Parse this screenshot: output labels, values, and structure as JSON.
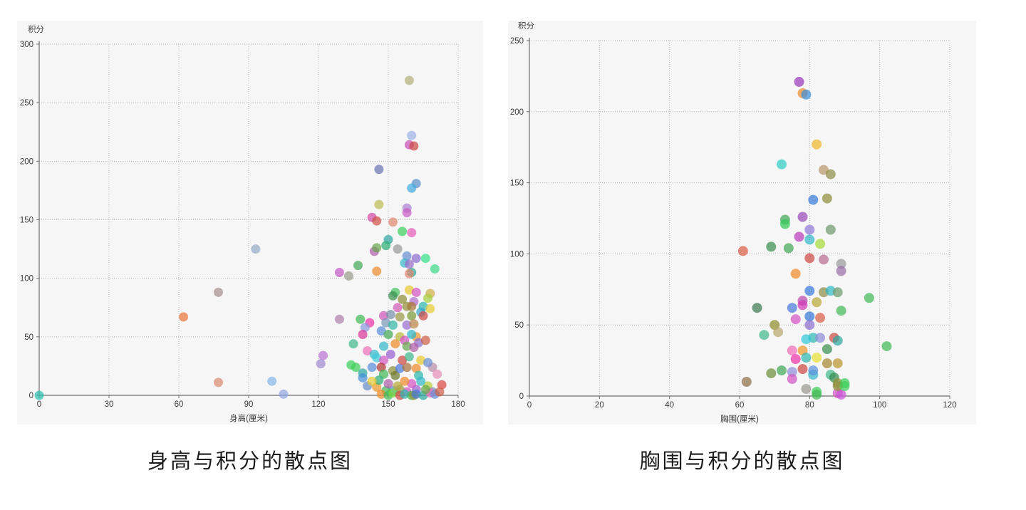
{
  "page": {
    "background": "#ffffff",
    "panel_background": "#f6f6f7"
  },
  "chart_data": [
    {
      "type": "scatter",
      "title": "身高与积分的散点图",
      "xlabel": "身高(厘米)",
      "ylabel": "积分",
      "xlim": [
        0,
        180
      ],
      "ylim": [
        0,
        300
      ],
      "x_ticks": [
        0,
        30,
        60,
        90,
        120,
        150,
        180
      ],
      "y_ticks": [
        0,
        50,
        100,
        150,
        200,
        250,
        300
      ],
      "grid": "dotted",
      "legend": "none",
      "point_radius": 6.5,
      "point_opacity": 0.72,
      "points": [
        {
          "x": 0,
          "y": 0,
          "c": "#2bbfae"
        },
        {
          "x": 62,
          "y": 67,
          "c": "#e8743b"
        },
        {
          "x": 77,
          "y": 88,
          "c": "#a8928e"
        },
        {
          "x": 77,
          "y": 11,
          "c": "#d98a72"
        },
        {
          "x": 93,
          "y": 125,
          "c": "#96aac8"
        },
        {
          "x": 100,
          "y": 12,
          "c": "#88b8e8"
        },
        {
          "x": 105,
          "y": 1,
          "c": "#92a6e0"
        },
        {
          "x": 122,
          "y": 34,
          "c": "#bd72d6"
        },
        {
          "x": 121,
          "y": 27,
          "c": "#a08bd0"
        },
        {
          "x": 159,
          "y": 269,
          "c": "#b5b37c"
        },
        {
          "x": 160,
          "y": 222,
          "c": "#9cb1e3"
        },
        {
          "x": 159,
          "y": 214,
          "c": "#c94fb8"
        },
        {
          "x": 161,
          "y": 213,
          "c": "#cc4a45"
        },
        {
          "x": 146,
          "y": 193,
          "c": "#6a74b0"
        },
        {
          "x": 162,
          "y": 181,
          "c": "#5b8fc9"
        },
        {
          "x": 160,
          "y": 177,
          "c": "#43aadd"
        },
        {
          "x": 146,
          "y": 163,
          "c": "#b9bd55"
        },
        {
          "x": 143,
          "y": 152,
          "c": "#d14ba8"
        },
        {
          "x": 145,
          "y": 149,
          "c": "#cf5349"
        },
        {
          "x": 152,
          "y": 148,
          "c": "#e08a70"
        },
        {
          "x": 158,
          "y": 160,
          "c": "#a97fd1"
        },
        {
          "x": 158,
          "y": 156,
          "c": "#c95ec3"
        },
        {
          "x": 156,
          "y": 140,
          "c": "#3fcf61"
        },
        {
          "x": 160,
          "y": 139,
          "c": "#e560b8"
        },
        {
          "x": 150,
          "y": 133,
          "c": "#2fa8a0"
        },
        {
          "x": 129,
          "y": 105,
          "c": "#c45cc8"
        },
        {
          "x": 133,
          "y": 102,
          "c": "#9a9d8c"
        },
        {
          "x": 137,
          "y": 111,
          "c": "#43a857"
        },
        {
          "x": 145,
          "y": 106,
          "c": "#ef8c2e"
        },
        {
          "x": 144,
          "y": 123,
          "c": "#b05fa8"
        },
        {
          "x": 145,
          "y": 126,
          "c": "#6aa84f"
        },
        {
          "x": 154,
          "y": 125,
          "c": "#9a9a9a"
        },
        {
          "x": 149,
          "y": 128,
          "c": "#2fae77"
        },
        {
          "x": 158,
          "y": 119,
          "c": "#6c8fd4"
        },
        {
          "x": 162,
          "y": 117,
          "c": "#8f6fd0"
        },
        {
          "x": 166,
          "y": 117,
          "c": "#35e08a"
        },
        {
          "x": 157,
          "y": 113,
          "c": "#35b8c9"
        },
        {
          "x": 159,
          "y": 112,
          "c": "#9a6fc9"
        },
        {
          "x": 160,
          "y": 105,
          "c": "#2fa89a"
        },
        {
          "x": 159,
          "y": 104,
          "c": "#e0876f"
        },
        {
          "x": 170,
          "y": 108,
          "c": "#3fd98a"
        },
        {
          "x": 153,
          "y": 88,
          "c": "#4cc462"
        },
        {
          "x": 159,
          "y": 90,
          "c": "#e8c832"
        },
        {
          "x": 162,
          "y": 88,
          "c": "#d454c4"
        },
        {
          "x": 152,
          "y": 85,
          "c": "#3a8f4f"
        },
        {
          "x": 168,
          "y": 87,
          "c": "#cfae4a"
        },
        {
          "x": 167,
          "y": 83,
          "c": "#a8cf3f"
        },
        {
          "x": 161,
          "y": 80,
          "c": "#b06fd0"
        },
        {
          "x": 156,
          "y": 82,
          "c": "#8f8f3a"
        },
        {
          "x": 154,
          "y": 75,
          "c": "#d05cb8"
        },
        {
          "x": 158,
          "y": 76,
          "c": "#8f8f3a"
        },
        {
          "x": 160,
          "y": 76,
          "c": "#a8783a"
        },
        {
          "x": 165,
          "y": 76,
          "c": "#2fb8b0"
        },
        {
          "x": 168,
          "y": 74,
          "c": "#e8cf3a"
        },
        {
          "x": 148,
          "y": 68,
          "c": "#cf54b8"
        },
        {
          "x": 151,
          "y": 69,
          "c": "#7a8fa8"
        },
        {
          "x": 155,
          "y": 67,
          "c": "#9a9a4a"
        },
        {
          "x": 160,
          "y": 68,
          "c": "#7a9a3a"
        },
        {
          "x": 164,
          "y": 71,
          "c": "#35a8c9"
        },
        {
          "x": 165,
          "y": 68,
          "c": "#cf4a45"
        },
        {
          "x": 129,
          "y": 65,
          "c": "#b07fa8"
        },
        {
          "x": 138,
          "y": 65,
          "c": "#43b857"
        },
        {
          "x": 142,
          "y": 62,
          "c": "#ef35a8"
        },
        {
          "x": 149,
          "y": 62,
          "c": "#7a9ab8"
        },
        {
          "x": 152,
          "y": 60,
          "c": "#35b8a8"
        },
        {
          "x": 158,
          "y": 60,
          "c": "#9a6fd0"
        },
        {
          "x": 161,
          "y": 61,
          "c": "#b8864a"
        },
        {
          "x": 140,
          "y": 58,
          "c": "#8f9ad9"
        },
        {
          "x": 139,
          "y": 52,
          "c": "#d93a9a"
        },
        {
          "x": 162,
          "y": 50,
          "c": "#ef9a2e"
        },
        {
          "x": 135,
          "y": 44,
          "c": "#43b88f"
        },
        {
          "x": 147,
          "y": 55,
          "c": "#5c8fd9"
        },
        {
          "x": 150,
          "y": 52,
          "c": "#43a857"
        },
        {
          "x": 155,
          "y": 50,
          "c": "#b8b83a"
        },
        {
          "x": 157,
          "y": 47,
          "c": "#d454c4"
        },
        {
          "x": 160,
          "y": 52,
          "c": "#2fb8c9"
        },
        {
          "x": 163,
          "y": 45,
          "c": "#8f6fd0"
        },
        {
          "x": 166,
          "y": 47,
          "c": "#cf5f45"
        },
        {
          "x": 153,
          "y": 44,
          "c": "#ef8c2e"
        },
        {
          "x": 148,
          "y": 42,
          "c": "#35b8c9"
        },
        {
          "x": 158,
          "y": 42,
          "c": "#6aa84f"
        },
        {
          "x": 161,
          "y": 41,
          "c": "#b05fa8"
        },
        {
          "x": 141,
          "y": 38,
          "c": "#ef6fb8"
        },
        {
          "x": 144,
          "y": 35,
          "c": "#35b8c9"
        },
        {
          "x": 145,
          "y": 32,
          "c": "#43c9d9"
        },
        {
          "x": 148,
          "y": 30,
          "c": "#d05cc4"
        },
        {
          "x": 134,
          "y": 26,
          "c": "#3fcf5c"
        },
        {
          "x": 139,
          "y": 19,
          "c": "#2fa8a0"
        },
        {
          "x": 143,
          "y": 24,
          "c": "#5c8fd9"
        },
        {
          "x": 147,
          "y": 24,
          "c": "#b03a35"
        },
        {
          "x": 148,
          "y": 18,
          "c": "#43b857"
        },
        {
          "x": 152,
          "y": 21,
          "c": "#8f8f3a"
        },
        {
          "x": 153,
          "y": 17,
          "c": "#6f7a2e"
        },
        {
          "x": 155,
          "y": 23,
          "c": "#4a7ad9"
        },
        {
          "x": 158,
          "y": 24,
          "c": "#a8733a"
        },
        {
          "x": 162,
          "y": 23,
          "c": "#ef8c2e"
        },
        {
          "x": 163,
          "y": 17,
          "c": "#2fb8b0"
        },
        {
          "x": 169,
          "y": 24,
          "c": "#b88fa8"
        },
        {
          "x": 171,
          "y": 18,
          "c": "#e58fb8"
        },
        {
          "x": 136,
          "y": 24,
          "c": "#3fcf5c"
        },
        {
          "x": 151,
          "y": 35,
          "c": "#9a5fd0"
        },
        {
          "x": 156,
          "y": 30,
          "c": "#cf4a45"
        },
        {
          "x": 159,
          "y": 33,
          "c": "#43b88f"
        },
        {
          "x": 164,
          "y": 30,
          "c": "#e8c832"
        },
        {
          "x": 167,
          "y": 28,
          "c": "#6c8fd4"
        },
        {
          "x": 173,
          "y": 9,
          "c": "#d94a45"
        },
        {
          "x": 167,
          "y": 8,
          "c": "#b8cf3f"
        },
        {
          "x": 169,
          "y": 3,
          "c": "#7a8fb8"
        },
        {
          "x": 162,
          "y": 5,
          "c": "#9a5fd0"
        },
        {
          "x": 158,
          "y": 3,
          "c": "#d054c4"
        },
        {
          "x": 155,
          "y": 5,
          "c": "#9a9a4a"
        },
        {
          "x": 152,
          "y": 4,
          "c": "#5c8fd9"
        },
        {
          "x": 149,
          "y": 4,
          "c": "#43b857"
        },
        {
          "x": 145,
          "y": 7,
          "c": "#ef9a2e"
        },
        {
          "x": 141,
          "y": 8,
          "c": "#6c8fc9"
        },
        {
          "x": 139,
          "y": 15,
          "c": "#4a8fd9"
        },
        {
          "x": 147,
          "y": 1,
          "c": "#ef8c2e"
        },
        {
          "x": 150,
          "y": 0,
          "c": "#43b857"
        },
        {
          "x": 152,
          "y": 2,
          "c": "#7ad93f"
        },
        {
          "x": 155,
          "y": 0,
          "c": "#cf4a45"
        },
        {
          "x": 157,
          "y": 1,
          "c": "#2fb8b0"
        },
        {
          "x": 160,
          "y": 0,
          "c": "#43b857"
        },
        {
          "x": 161,
          "y": 0,
          "c": "#8f8f3a"
        },
        {
          "x": 162,
          "y": 1,
          "c": "#4a7ad9"
        },
        {
          "x": 165,
          "y": 0,
          "c": "#2fa8a0"
        },
        {
          "x": 168,
          "y": 2,
          "c": "#ef6fb8"
        },
        {
          "x": 170,
          "y": 1,
          "c": "#6c8fd4"
        },
        {
          "x": 172,
          "y": 3,
          "c": "#cf5f45"
        },
        {
          "x": 154,
          "y": 8,
          "c": "#b8a83a"
        },
        {
          "x": 160,
          "y": 10,
          "c": "#d454c4"
        },
        {
          "x": 164,
          "y": 12,
          "c": "#35b8c9"
        },
        {
          "x": 166,
          "y": 5,
          "c": "#6aa84f"
        },
        {
          "x": 157,
          "y": 12,
          "c": "#ef8c2e"
        },
        {
          "x": 150,
          "y": 10,
          "c": "#b05fa8"
        },
        {
          "x": 146,
          "y": 13,
          "c": "#2fae77"
        },
        {
          "x": 143,
          "y": 12,
          "c": "#e8c832"
        }
      ]
    },
    {
      "type": "scatter",
      "title": "胸围与积分的散点图",
      "xlabel": "胸围(厘米)",
      "ylabel": "积分",
      "xlim": [
        0,
        120
      ],
      "ylim": [
        0,
        250
      ],
      "x_ticks": [
        0,
        20,
        40,
        60,
        80,
        100,
        120
      ],
      "y_ticks": [
        0,
        50,
        100,
        150,
        200,
        250
      ],
      "grid": "dotted",
      "legend": "none",
      "point_radius": 7,
      "point_opacity": 0.72,
      "points": [
        {
          "x": 77,
          "y": 221,
          "c": "#9a3ab8"
        },
        {
          "x": 78,
          "y": 213,
          "c": "#ef8c2e"
        },
        {
          "x": 79,
          "y": 212,
          "c": "#3a8fd9"
        },
        {
          "x": 82,
          "y": 177,
          "c": "#efb82e"
        },
        {
          "x": 72,
          "y": 163,
          "c": "#2ecfc4"
        },
        {
          "x": 84,
          "y": 159,
          "c": "#b89a6f"
        },
        {
          "x": 86,
          "y": 156,
          "c": "#8f8f4a"
        },
        {
          "x": 81,
          "y": 138,
          "c": "#3a7ad9"
        },
        {
          "x": 85,
          "y": 139,
          "c": "#8f8f3a"
        },
        {
          "x": 78,
          "y": 126,
          "c": "#9a4ab8"
        },
        {
          "x": 73,
          "y": 124,
          "c": "#43a857"
        },
        {
          "x": 73,
          "y": 121,
          "c": "#35c957"
        },
        {
          "x": 80,
          "y": 117,
          "c": "#8f7ad9"
        },
        {
          "x": 86,
          "y": 117,
          "c": "#6f9a6f"
        },
        {
          "x": 74,
          "y": 104,
          "c": "#43a857"
        },
        {
          "x": 61,
          "y": 102,
          "c": "#d95f4a"
        },
        {
          "x": 69,
          "y": 105,
          "c": "#3a8f4f"
        },
        {
          "x": 77,
          "y": 112,
          "c": "#b83ab8"
        },
        {
          "x": 80,
          "y": 110,
          "c": "#35b8c9"
        },
        {
          "x": 83,
          "y": 107,
          "c": "#a8d93a"
        },
        {
          "x": 80,
          "y": 97,
          "c": "#cf4a45"
        },
        {
          "x": 84,
          "y": 96,
          "c": "#b86f8f"
        },
        {
          "x": 89,
          "y": 93,
          "c": "#9a9a9a"
        },
        {
          "x": 89,
          "y": 88,
          "c": "#9a6fa8"
        },
        {
          "x": 76,
          "y": 86,
          "c": "#ef8c2e"
        },
        {
          "x": 80,
          "y": 74,
          "c": "#3a7ad9"
        },
        {
          "x": 84,
          "y": 73,
          "c": "#8f8f4a"
        },
        {
          "x": 86,
          "y": 74,
          "c": "#35b8c9"
        },
        {
          "x": 88,
          "y": 73,
          "c": "#6f9a6f"
        },
        {
          "x": 97,
          "y": 69,
          "c": "#43b857"
        },
        {
          "x": 78,
          "y": 67,
          "c": "#b84aa8"
        },
        {
          "x": 82,
          "y": 66,
          "c": "#b8a83a"
        },
        {
          "x": 75,
          "y": 62,
          "c": "#4a7ad9"
        },
        {
          "x": 65,
          "y": 62,
          "c": "#3a7a4f"
        },
        {
          "x": 78,
          "y": 64,
          "c": "#d03ab8"
        },
        {
          "x": 80,
          "y": 56,
          "c": "#3a7ad9"
        },
        {
          "x": 83,
          "y": 55,
          "c": "#d95f4a"
        },
        {
          "x": 89,
          "y": 60,
          "c": "#43b857"
        },
        {
          "x": 76,
          "y": 54,
          "c": "#d454c4"
        },
        {
          "x": 70,
          "y": 50,
          "c": "#8f8f2e"
        },
        {
          "x": 71,
          "y": 45,
          "c": "#b8a86f"
        },
        {
          "x": 67,
          "y": 43,
          "c": "#43b88f"
        },
        {
          "x": 80,
          "y": 50,
          "c": "#8f6fd0"
        },
        {
          "x": 81,
          "y": 41,
          "c": "#2fb8b0"
        },
        {
          "x": 83,
          "y": 41,
          "c": "#8f8fd9"
        },
        {
          "x": 79,
          "y": 40,
          "c": "#35c9d9"
        },
        {
          "x": 87,
          "y": 41,
          "c": "#cf4a45"
        },
        {
          "x": 88,
          "y": 39,
          "c": "#2fa8a0"
        },
        {
          "x": 75,
          "y": 32,
          "c": "#ef6fb8"
        },
        {
          "x": 78,
          "y": 32,
          "c": "#ef9a2e"
        },
        {
          "x": 85,
          "y": 33,
          "c": "#3a8f4f"
        },
        {
          "x": 79,
          "y": 27,
          "c": "#2fb8b0"
        },
        {
          "x": 76,
          "y": 26,
          "c": "#ef35a8"
        },
        {
          "x": 82,
          "y": 27,
          "c": "#e8e035"
        },
        {
          "x": 85,
          "y": 23,
          "c": "#a8862e"
        },
        {
          "x": 88,
          "y": 23,
          "c": "#b8962e"
        },
        {
          "x": 102,
          "y": 35,
          "c": "#43b857"
        },
        {
          "x": 62,
          "y": 10,
          "c": "#8f6f4a"
        },
        {
          "x": 69,
          "y": 16,
          "c": "#6f8f3a"
        },
        {
          "x": 72,
          "y": 18,
          "c": "#43a857"
        },
        {
          "x": 75,
          "y": 17,
          "c": "#8f8fd9"
        },
        {
          "x": 75,
          "y": 12,
          "c": "#d054c4"
        },
        {
          "x": 78,
          "y": 19,
          "c": "#cf4a45"
        },
        {
          "x": 81,
          "y": 15,
          "c": "#35b8c9"
        },
        {
          "x": 81,
          "y": 18,
          "c": "#5c8fd9"
        },
        {
          "x": 86,
          "y": 15,
          "c": "#43b88f"
        },
        {
          "x": 87,
          "y": 13,
          "c": "#3a8f4f"
        },
        {
          "x": 88,
          "y": 9,
          "c": "#8f8f3a"
        },
        {
          "x": 90,
          "y": 9,
          "c": "#3fcf5c"
        },
        {
          "x": 79,
          "y": 5,
          "c": "#9a9a8f"
        },
        {
          "x": 82,
          "y": 3,
          "c": "#3fcf5c"
        },
        {
          "x": 88,
          "y": 2,
          "c": "#d454c4"
        },
        {
          "x": 82,
          "y": 1,
          "c": "#43b857"
        },
        {
          "x": 89,
          "y": 1,
          "c": "#c954d4"
        },
        {
          "x": 88,
          "y": 7,
          "c": "#8f8f3a"
        },
        {
          "x": 90,
          "y": 7,
          "c": "#3fcf5c"
        }
      ]
    }
  ]
}
